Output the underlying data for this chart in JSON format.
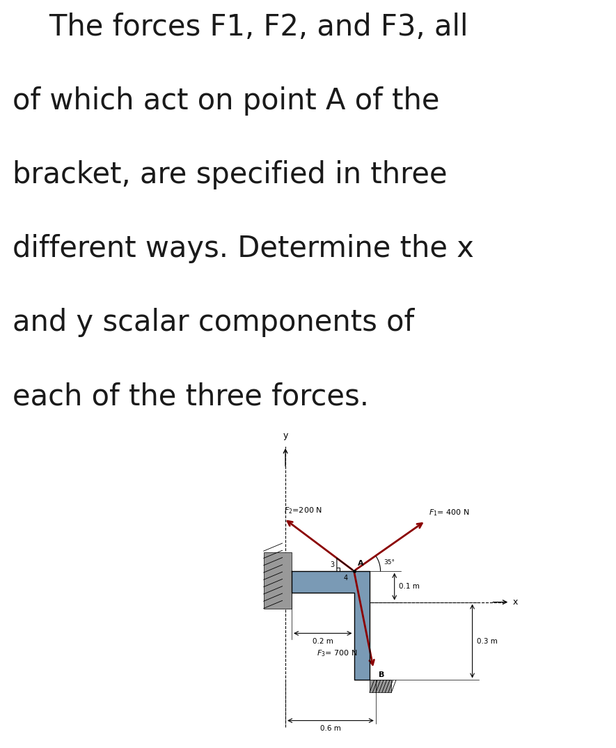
{
  "background_color": "#ffffff",
  "text_lines": [
    "    The forces F1, F2, and F3, all",
    "of which act on point A of the",
    "bracket, are specified in three",
    "different ways. Determine the x",
    "and y scalar components of",
    "each of the three forces."
  ],
  "text_fontsize": 30,
  "text_color": "#1a1a1a",
  "diagram": {
    "bracket_color": "#7a9ab5",
    "wall_color_left": "#999999",
    "wall_color_bottom": "#999999",
    "arrow_color": "#8b0000",
    "line_color": "#000000",
    "dim_color": "#000000",
    "label_fontsize": 8,
    "dim_fontsize": 7.5,
    "axis_fontsize": 9
  }
}
